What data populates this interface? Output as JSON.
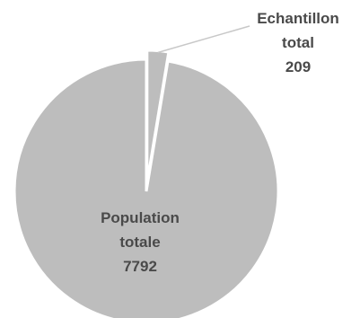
{
  "chart_data": {
    "type": "pie",
    "slices": [
      {
        "label_lines": [
          "Population",
          "totale",
          "7792"
        ],
        "value": 7792,
        "color": "#bdbdbd",
        "exploded": false
      },
      {
        "label_lines": [
          "Echantillon",
          "total",
          "209"
        ],
        "value": 209,
        "color": "#bdbdbd",
        "exploded": true
      }
    ],
    "label_color": "#4a4a4a",
    "leader_line_color": "#c8c8c8",
    "legend": false
  }
}
